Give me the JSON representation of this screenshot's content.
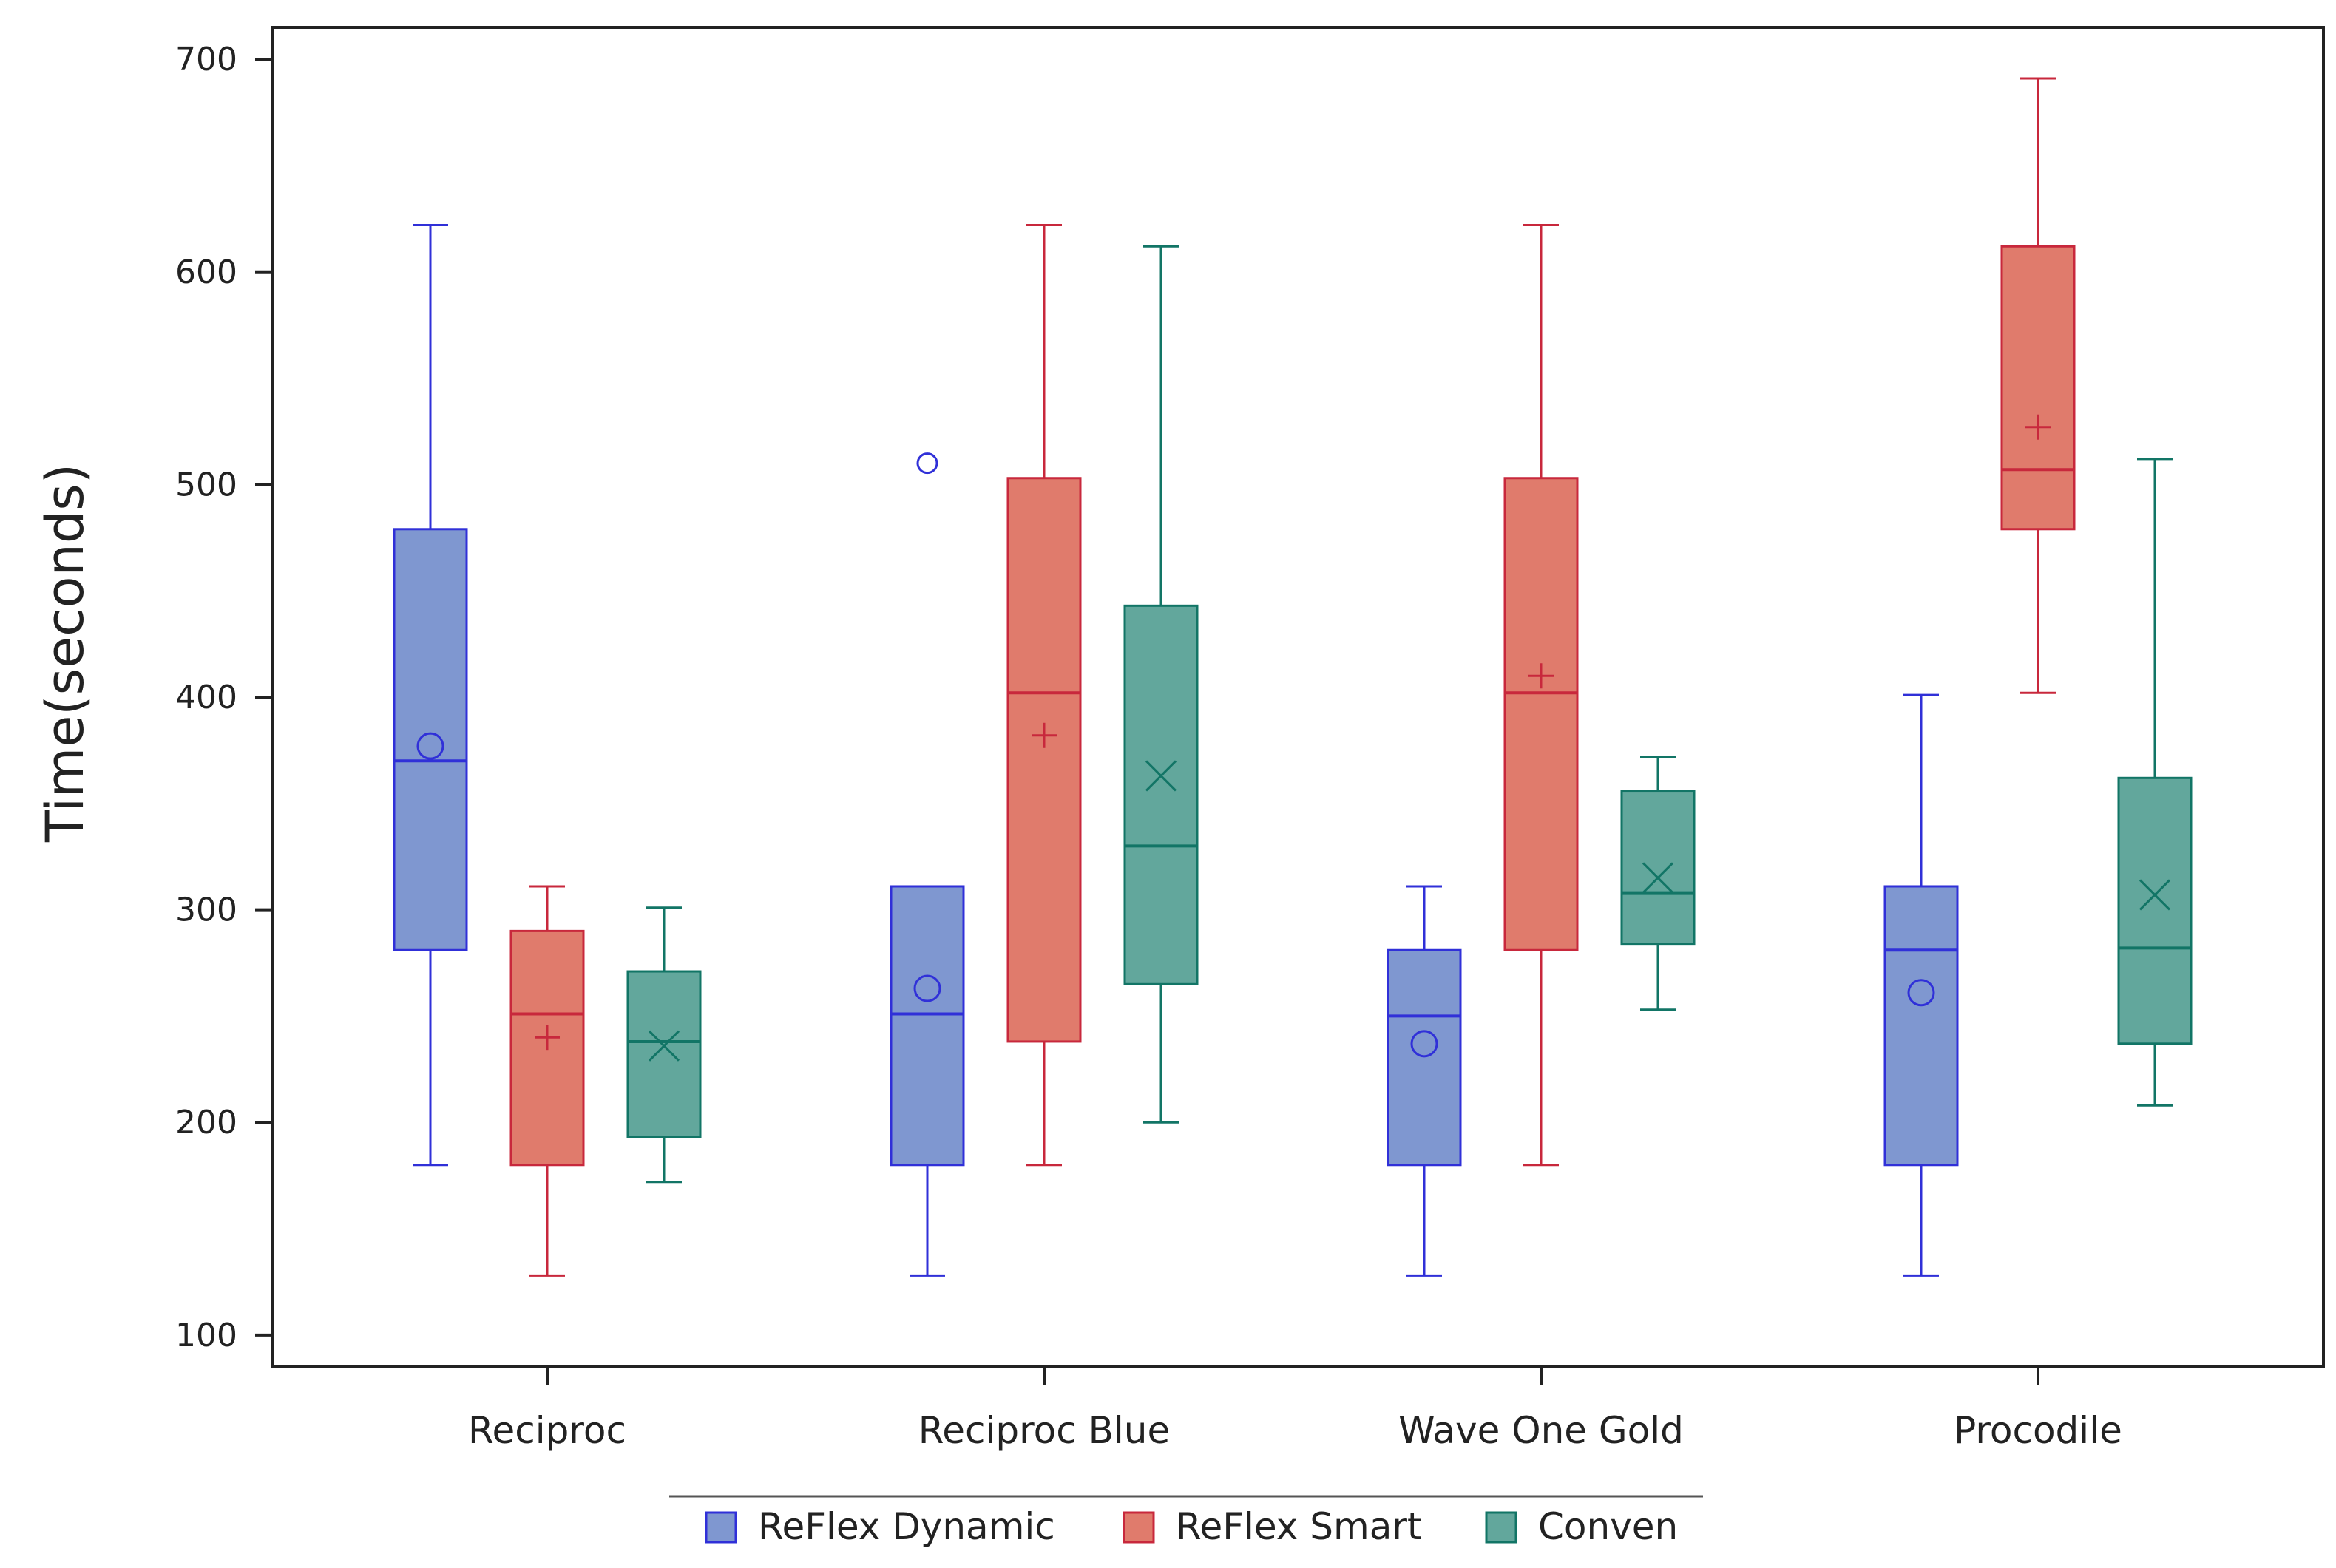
{
  "chart_data": {
    "type": "box",
    "title": "",
    "xlabel": "",
    "ylabel": "Time(seconds)",
    "ylim": [
      85,
      715
    ],
    "yticks": [
      100,
      200,
      300,
      400,
      500,
      600,
      700
    ],
    "ytick_labels": [
      "100",
      "200",
      "300",
      "400",
      "500",
      "600",
      "700"
    ],
    "grid": false,
    "legend_position": "bottom-center",
    "categories": [
      "Reciproc",
      "Reciproc Blue",
      "Wave One Gold",
      "Procodile"
    ],
    "series": [
      {
        "name": "ReFlex Dynamic",
        "fill": "#7f97d0",
        "stroke": "#3030d8",
        "mean_marker": "circle",
        "boxes": [
          {
            "whisker_low": 180,
            "q1": 281,
            "median": 370,
            "q3": 479,
            "whisker_high": 622,
            "mean": 377,
            "outliers": []
          },
          {
            "whisker_low": 128,
            "q1": 180,
            "median": 251,
            "q3": 311,
            "whisker_high": 311,
            "mean": 263,
            "outliers": [
              510
            ]
          },
          {
            "whisker_low": 128,
            "q1": 180,
            "median": 250,
            "q3": 281,
            "whisker_high": 311,
            "mean": 237,
            "outliers": []
          },
          {
            "whisker_low": 128,
            "q1": 180,
            "median": 281,
            "q3": 311,
            "whisker_high": 401,
            "mean": 261,
            "outliers": []
          }
        ]
      },
      {
        "name": "ReFlex Smart",
        "fill": "#e07b6c",
        "stroke": "#c8283c",
        "mean_marker": "plus",
        "boxes": [
          {
            "whisker_low": 128,
            "q1": 180,
            "median": 251,
            "q3": 290,
            "whisker_high": 311,
            "mean": 240,
            "outliers": []
          },
          {
            "whisker_low": 180,
            "q1": 238,
            "median": 402,
            "q3": 503,
            "whisker_high": 622,
            "mean": 382,
            "outliers": []
          },
          {
            "whisker_low": 180,
            "q1": 281,
            "median": 402,
            "q3": 503,
            "whisker_high": 622,
            "mean": 410,
            "outliers": []
          },
          {
            "whisker_low": 402,
            "q1": 479,
            "median": 507,
            "q3": 612,
            "whisker_high": 691,
            "mean": 527,
            "outliers": []
          }
        ]
      },
      {
        "name": "Conven",
        "fill": "#62a79c",
        "stroke": "#127566",
        "mean_marker": "x",
        "boxes": [
          {
            "whisker_low": 172,
            "q1": 193,
            "median": 238,
            "q3": 271,
            "whisker_high": 301,
            "mean": 236,
            "outliers": []
          },
          {
            "whisker_low": 200,
            "q1": 265,
            "median": 330,
            "q3": 443,
            "whisker_high": 612,
            "mean": 363,
            "outliers": []
          },
          {
            "whisker_low": 253,
            "q1": 284,
            "median": 308,
            "q3": 356,
            "whisker_high": 372,
            "mean": 315,
            "outliers": []
          },
          {
            "whisker_low": 208,
            "q1": 237,
            "median": 282,
            "q3": 362,
            "whisker_high": 512,
            "mean": 307,
            "outliers": []
          }
        ]
      }
    ]
  }
}
